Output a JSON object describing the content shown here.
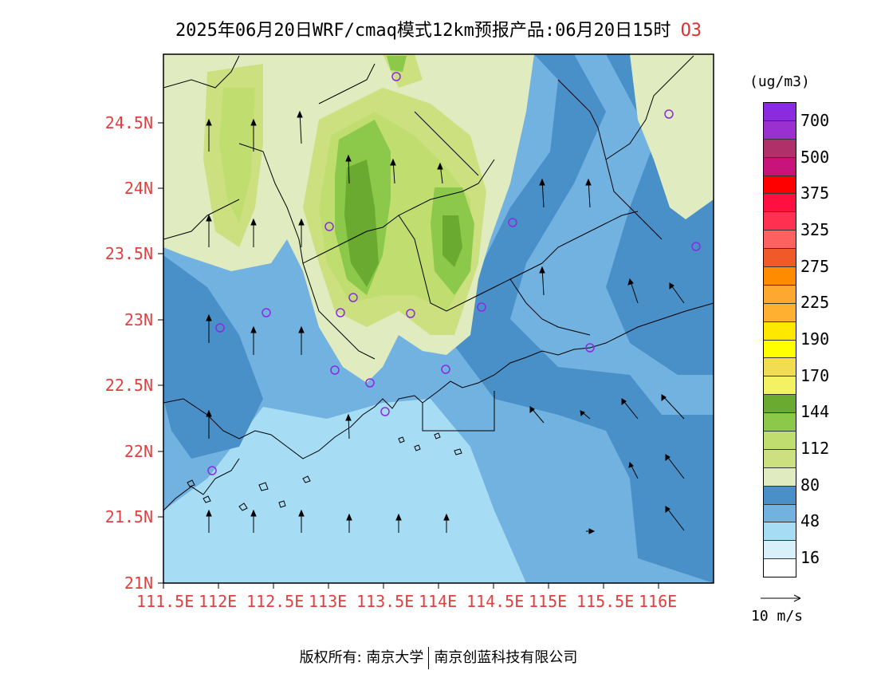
{
  "title": {
    "main": "2025年06月20日WRF/cmaq模式12km预报产品:06月20日15时",
    "species": "O3"
  },
  "map": {
    "lat_labels": [
      "24.5N",
      "24N",
      "23.5N",
      "23N",
      "22.5N",
      "22N",
      "21.5N",
      "21N"
    ],
    "lon_labels": [
      "111.5E",
      "112E",
      "112.5E",
      "113E",
      "113.5E",
      "114E",
      "114.5E",
      "115E",
      "115.5E",
      "116E"
    ],
    "lat_values": [
      24.5,
      24.0,
      23.5,
      23.0,
      22.5,
      22.0,
      21.5,
      21.0
    ],
    "lon_values": [
      111.5,
      112.0,
      112.5,
      113.0,
      113.5,
      114.0,
      114.5,
      115.0,
      115.5,
      116.0
    ]
  },
  "colorbar": {
    "unit": "(ug/m3)",
    "colors": [
      "#8a2be2",
      "#9b30d0",
      "#b0306a",
      "#c8147a",
      "#ff0000",
      "#ff1040",
      "#ff3050",
      "#ff6060",
      "#f05a28",
      "#ff8c00",
      "#ffa830",
      "#ffb030",
      "#ffe800",
      "#ffff00",
      "#f2dc50",
      "#f2f262",
      "#6aaa30",
      "#8cc84a",
      "#c0de70",
      "#cce080",
      "#e0ecc0",
      "#4a90c8",
      "#72b2e0",
      "#a6dcf4",
      "#d8f0fa",
      "#ffffff"
    ],
    "labels": [
      "700",
      "500",
      "375",
      "325",
      "275",
      "225",
      "190",
      "170",
      "144",
      "112",
      "80",
      "48",
      "16"
    ]
  },
  "wind_reference": {
    "label": "10 m/s"
  },
  "copyright": {
    "left": "版权所有: 南京大学",
    "right": "南京创蓝科技有限公司"
  }
}
